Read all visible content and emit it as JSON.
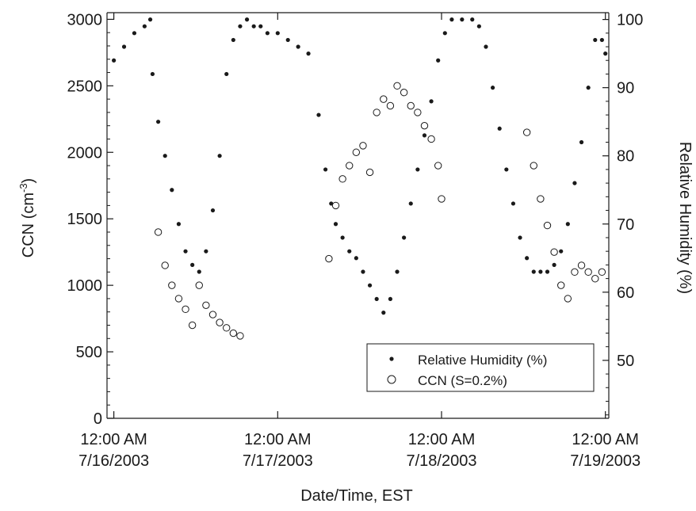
{
  "chart_data": {
    "type": "scatter",
    "title": "",
    "xlabel": "Date/Time, EST",
    "ylabel": "CCN (cm",
    "ylabel_exponent": "-3",
    "ylabel_tail": ")",
    "y2label": "Relative Humidity (%)",
    "xlim": [
      "2003-07-15T23:00",
      "2003-07-19T00:30"
    ],
    "ylim": [
      0,
      3050
    ],
    "y2lim": [
      41.5,
      101
    ],
    "x_ticks": [
      {
        "x": "2003-07-16T00:00",
        "line1": "12:00 AM",
        "line2": "7/16/2003"
      },
      {
        "x": "2003-07-17T00:00",
        "line1": "12:00 AM",
        "line2": "7/17/2003"
      },
      {
        "x": "2003-07-18T00:00",
        "line1": "12:00 AM",
        "line2": "7/18/2003"
      },
      {
        "x": "2003-07-19T00:00",
        "line1": "12:00 AM",
        "line2": "7/19/2003"
      }
    ],
    "y_ticks": [
      "0",
      "500",
      "1000",
      "1500",
      "2000",
      "2500",
      "3000"
    ],
    "y2_ticks": [
      "50",
      "60",
      "70",
      "80",
      "90",
      "100"
    ],
    "legend": {
      "placement": "bottom-right",
      "entries": [
        "Relative Humidity (%)",
        "CCN (S=0.2%)"
      ]
    },
    "grid": false,
    "series": [
      {
        "name": "Relative Humidity (%)",
        "axis": "right",
        "marker": "filled-dot",
        "x": [
          "2003-07-16T00:00",
          "2003-07-16T01:30",
          "2003-07-16T03:00",
          "2003-07-16T04:30",
          "2003-07-16T05:20",
          "2003-07-16T05:40",
          "2003-07-16T06:30",
          "2003-07-16T07:30",
          "2003-07-16T08:30",
          "2003-07-16T09:30",
          "2003-07-16T10:30",
          "2003-07-16T11:30",
          "2003-07-16T12:30",
          "2003-07-16T13:30",
          "2003-07-16T14:30",
          "2003-07-16T15:30",
          "2003-07-16T16:30",
          "2003-07-16T17:30",
          "2003-07-16T18:30",
          "2003-07-16T19:30",
          "2003-07-16T20:30",
          "2003-07-16T21:30",
          "2003-07-16T22:30",
          "2003-07-17T00:00",
          "2003-07-17T01:30",
          "2003-07-17T03:00",
          "2003-07-17T04:30",
          "2003-07-17T06:00",
          "2003-07-17T07:00",
          "2003-07-17T07:50",
          "2003-07-17T08:30",
          "2003-07-17T09:30",
          "2003-07-17T10:30",
          "2003-07-17T11:30",
          "2003-07-17T12:30",
          "2003-07-17T13:30",
          "2003-07-17T14:30",
          "2003-07-17T15:30",
          "2003-07-17T16:30",
          "2003-07-17T17:30",
          "2003-07-17T18:30",
          "2003-07-17T19:30",
          "2003-07-17T20:30",
          "2003-07-17T21:30",
          "2003-07-17T22:30",
          "2003-07-17T23:30",
          "2003-07-18T00:30",
          "2003-07-18T01:30",
          "2003-07-18T03:00",
          "2003-07-18T04:30",
          "2003-07-18T05:30",
          "2003-07-18T06:30",
          "2003-07-18T07:30",
          "2003-07-18T08:30",
          "2003-07-18T09:30",
          "2003-07-18T10:30",
          "2003-07-18T11:30",
          "2003-07-18T12:30",
          "2003-07-18T13:30",
          "2003-07-18T14:30",
          "2003-07-18T15:30",
          "2003-07-18T16:30",
          "2003-07-18T17:30",
          "2003-07-18T18:30",
          "2003-07-18T19:30",
          "2003-07-18T20:30",
          "2003-07-18T21:30",
          "2003-07-18T22:30",
          "2003-07-18T23:30",
          "2003-07-19T00:00"
        ],
        "values": [
          94,
          96,
          98,
          99,
          100,
          92,
          85,
          80,
          75,
          70,
          66,
          64,
          63,
          66,
          72,
          80,
          92,
          97,
          99,
          100,
          99,
          99,
          98,
          98,
          97,
          96,
          95,
          86,
          78,
          73,
          70,
          68,
          66,
          65,
          63,
          61,
          59,
          57,
          59,
          63,
          68,
          73,
          78,
          83,
          88,
          94,
          98,
          100,
          100,
          100,
          99,
          96,
          90,
          84,
          78,
          73,
          68,
          65,
          63,
          63,
          63,
          64,
          66,
          70,
          76,
          82,
          90,
          97,
          97,
          95
        ]
      },
      {
        "name": "CCN (S=0.2%)",
        "axis": "left",
        "marker": "open-circle",
        "x": [
          "2003-07-16T06:30",
          "2003-07-16T07:30",
          "2003-07-16T08:30",
          "2003-07-16T09:30",
          "2003-07-16T10:30",
          "2003-07-16T11:30",
          "2003-07-16T12:30",
          "2003-07-16T13:30",
          "2003-07-16T14:30",
          "2003-07-16T15:30",
          "2003-07-16T16:30",
          "2003-07-16T17:30",
          "2003-07-16T18:30",
          "2003-07-17T07:30",
          "2003-07-17T08:30",
          "2003-07-17T09:30",
          "2003-07-17T10:30",
          "2003-07-17T11:30",
          "2003-07-17T12:30",
          "2003-07-17T13:30",
          "2003-07-17T14:30",
          "2003-07-17T15:30",
          "2003-07-17T16:30",
          "2003-07-17T17:30",
          "2003-07-17T18:30",
          "2003-07-17T19:30",
          "2003-07-17T20:30",
          "2003-07-17T21:30",
          "2003-07-17T22:30",
          "2003-07-17T23:30",
          "2003-07-18T00:00",
          "2003-07-18T12:30",
          "2003-07-18T13:30",
          "2003-07-18T14:30",
          "2003-07-18T15:30",
          "2003-07-18T16:30",
          "2003-07-18T17:30",
          "2003-07-18T18:30",
          "2003-07-18T19:30",
          "2003-07-18T20:30",
          "2003-07-18T21:30",
          "2003-07-18T22:30",
          "2003-07-18T23:30"
        ],
        "values": [
          1400,
          1150,
          1000,
          900,
          820,
          700,
          1000,
          850,
          780,
          720,
          680,
          640,
          620,
          1200,
          1600,
          1800,
          1900,
          2000,
          2050,
          1850,
          2300,
          2400,
          2350,
          2500,
          2450,
          2350,
          2300,
          2200,
          2100,
          1900,
          1650,
          2150,
          1900,
          1650,
          1450,
          1250,
          1000,
          900,
          1100,
          1150,
          1100,
          1050,
          1100
        ]
      }
    ]
  }
}
